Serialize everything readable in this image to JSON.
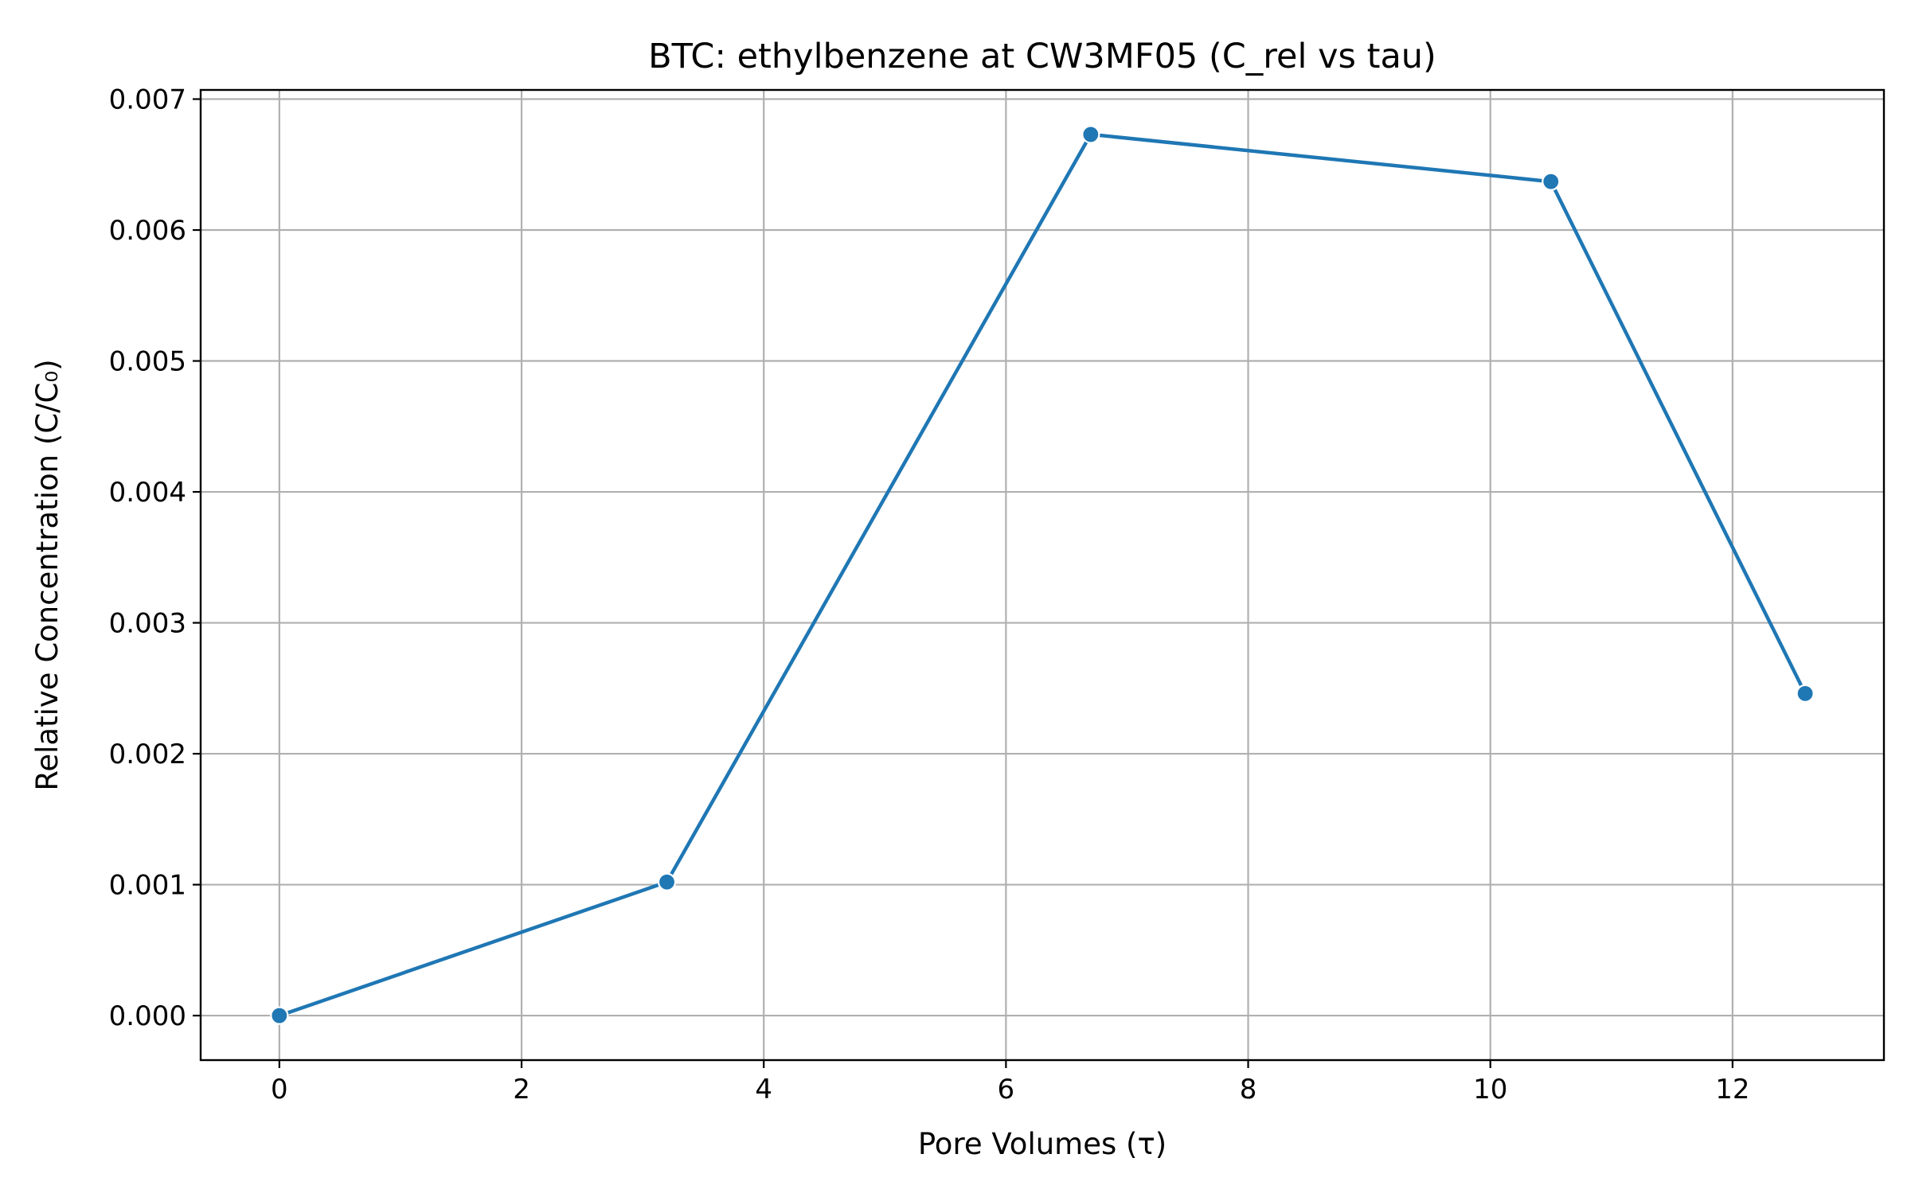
{
  "chart_data": {
    "type": "line",
    "title": "BTC: ethylbenzene at CW3MF05 (C_rel vs tau)",
    "xlabel": "Pore Volumes (τ)",
    "ylabel": "Relative Concentration (C/C₀)",
    "xlim": [
      -0.65,
      13.25
    ],
    "ylim": [
      -0.00034,
      0.00707
    ],
    "x_ticks": [
      0,
      2,
      4,
      6,
      8,
      10,
      12
    ],
    "x_tick_labels": [
      "0",
      "2",
      "4",
      "6",
      "8",
      "10",
      "12"
    ],
    "y_ticks": [
      0,
      0.001,
      0.002,
      0.003,
      0.004,
      0.005,
      0.006,
      0.007
    ],
    "y_tick_labels": [
      "0.000",
      "0.001",
      "0.002",
      "0.003",
      "0.004",
      "0.005",
      "0.006",
      "0.007"
    ],
    "grid": true,
    "legend": "none",
    "series": [
      {
        "x": [
          0,
          3.2,
          6.7,
          10.5,
          12.6
        ],
        "y": [
          0.0,
          0.00102,
          0.00673,
          0.00637,
          0.00246
        ],
        "color": "#1f77b4",
        "marker": "circle"
      }
    ]
  }
}
